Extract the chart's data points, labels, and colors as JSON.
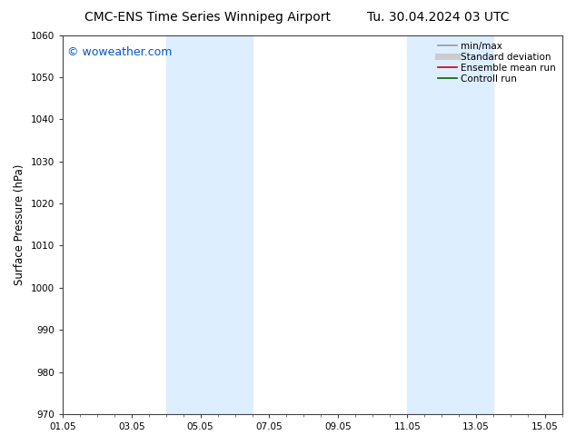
{
  "title_left": "CMC-ENS Time Series Winnipeg Airport",
  "title_right": "Tu. 30.04.2024 03 UTC",
  "ylabel": "Surface Pressure (hPa)",
  "ylim": [
    970,
    1060
  ],
  "yticks": [
    970,
    980,
    990,
    1000,
    1010,
    1020,
    1030,
    1040,
    1050,
    1060
  ],
  "xlim": [
    0,
    14
  ],
  "xtick_labels": [
    "01.05",
    "03.05",
    "05.05",
    "07.05",
    "09.05",
    "11.05",
    "13.05",
    "15.05"
  ],
  "xtick_positions": [
    0,
    2,
    4,
    6,
    8,
    10,
    12,
    14
  ],
  "shaded_bands": [
    {
      "x_start": 3.0,
      "x_end": 5.5
    },
    {
      "x_start": 10.0,
      "x_end": 12.5
    }
  ],
  "shaded_color": "#ddeeff",
  "background_color": "#ffffff",
  "watermark": "© woweather.com",
  "watermark_color": "#0055cc",
  "legend_entries": [
    {
      "label": "min/max",
      "color": "#999999",
      "lw": 1.2,
      "linestyle": "-"
    },
    {
      "label": "Standard deviation",
      "color": "#cccccc",
      "lw": 5,
      "linestyle": "-"
    },
    {
      "label": "Ensemble mean run",
      "color": "#cc0000",
      "lw": 1.2,
      "linestyle": "-"
    },
    {
      "label": "Controll run",
      "color": "#006600",
      "lw": 1.2,
      "linestyle": "-"
    }
  ],
  "title_fontsize": 10,
  "tick_fontsize": 7.5,
  "ylabel_fontsize": 8.5,
  "legend_fontsize": 7.5,
  "watermark_fontsize": 9
}
